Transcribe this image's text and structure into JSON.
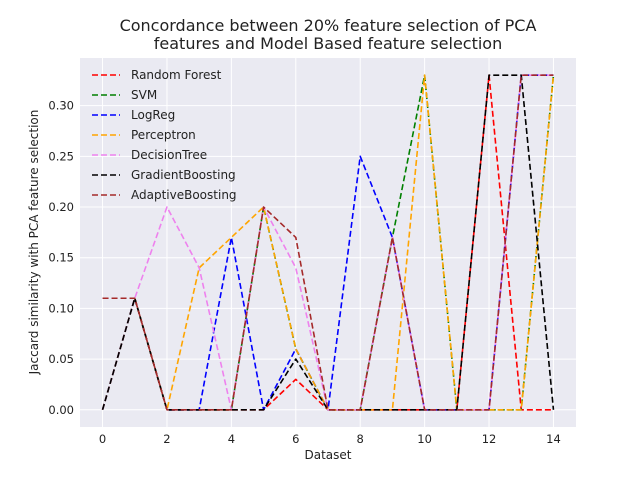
{
  "chart_data": {
    "type": "line",
    "title_line1": "Concordance between 20% feature selection of PCA",
    "title_line2": "features and Model Based feature selection",
    "xlabel": "Dataset",
    "ylabel": "Jaccard similarity with PCA feature selection",
    "x": [
      0,
      1,
      2,
      3,
      4,
      5,
      6,
      7,
      8,
      9,
      10,
      11,
      12,
      13,
      14
    ],
    "xlim": [
      -0.7,
      14.7
    ],
    "ylim": [
      -0.017,
      0.347
    ],
    "xticks": [
      0,
      2,
      4,
      6,
      8,
      10,
      12,
      14
    ],
    "yticks": [
      0.0,
      0.05,
      0.1,
      0.15,
      0.2,
      0.25,
      0.3
    ],
    "ytick_labels": [
      "0.00",
      "0.05",
      "0.10",
      "0.15",
      "0.20",
      "0.25",
      "0.30"
    ],
    "grid": true,
    "legend_position": "top-left",
    "line_style": "dashed",
    "series": [
      {
        "name": "Random Forest",
        "color": "#ff0000",
        "values": [
          0.0,
          0.11,
          0.0,
          0.0,
          0.0,
          0.0,
          0.03,
          0.0,
          0.0,
          0.0,
          0.0,
          0.0,
          0.33,
          0.0,
          0.0
        ]
      },
      {
        "name": "SVM",
        "color": "#008000",
        "values": [
          0.0,
          0.11,
          0.0,
          0.0,
          0.0,
          0.2,
          0.06,
          0.0,
          0.0,
          0.17,
          0.33,
          0.0,
          0.0,
          0.0,
          0.33
        ]
      },
      {
        "name": "LogReg",
        "color": "#0000ff",
        "values": [
          0.0,
          0.11,
          0.0,
          0.0,
          0.17,
          0.0,
          0.06,
          0.0,
          0.25,
          0.17,
          0.0,
          0.0,
          0.0,
          0.33,
          0.33
        ]
      },
      {
        "name": "Perceptron",
        "color": "#ffa500",
        "values": [
          0.0,
          0.11,
          0.0,
          0.14,
          0.17,
          0.2,
          0.06,
          0.0,
          0.0,
          0.0,
          0.33,
          0.0,
          0.0,
          0.0,
          0.33
        ]
      },
      {
        "name": "DecisionTree",
        "color": "#ee82ee",
        "values": [
          0.0,
          0.11,
          0.2,
          0.14,
          0.0,
          0.2,
          0.14,
          0.0,
          0.0,
          0.17,
          0.0,
          0.0,
          0.0,
          0.33,
          0.33
        ]
      },
      {
        "name": "GradientBoosting",
        "color": "#000000",
        "values": [
          0.0,
          0.11,
          0.0,
          0.0,
          0.0,
          0.0,
          0.05,
          0.0,
          0.0,
          0.0,
          0.0,
          0.0,
          0.33,
          0.33,
          0.0
        ]
      },
      {
        "name": "AdaptiveBoosting",
        "color": "#a52a2a",
        "values": [
          0.11,
          0.11,
          0.0,
          0.0,
          0.0,
          0.2,
          0.17,
          0.0,
          0.0,
          0.17,
          0.0,
          0.0,
          0.0,
          0.33,
          0.33
        ]
      }
    ]
  }
}
